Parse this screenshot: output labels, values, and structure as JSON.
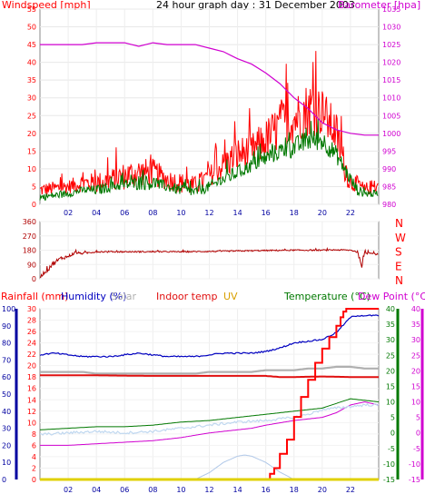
{
  "colors": {
    "wind": "#ff0000",
    "gust_dark": "#c00000",
    "windavg": "#007800",
    "baro": "#d000d0",
    "rain": "#ff0000",
    "humidity": "#0000c0",
    "indoor_hum": "#b0b0b0",
    "solar": "#b0c8e8",
    "indoor_temp": "#e01010",
    "uv": "#e0d000",
    "temperature": "#007800",
    "dewpoint": "#d000d0",
    "outdoor_temp": "#c0d8f0",
    "winddir": "#b00000",
    "axis_dark": "#0000a0"
  },
  "chart_data": [
    {
      "type": "line",
      "panel": "wind",
      "title": "24 hour graph day : 31 December 2003",
      "ylabel_left": "Windspeed [mph]",
      "ylabel_right": "Barometer [hpa]",
      "ylim_left": [
        0,
        55
      ],
      "ylim_right": [
        980,
        1035
      ],
      "yticks_left": [
        "0",
        "5",
        "10",
        "15",
        "20",
        "25",
        "30",
        "35",
        "40",
        "45",
        "50",
        "55"
      ],
      "yticks_right": [
        "980",
        "985",
        "990",
        "995",
        "1000",
        "1005",
        "1010",
        "1015",
        "1020",
        "1025",
        "1030",
        "1035"
      ],
      "x_ticks": [
        "02",
        "04",
        "06",
        "08",
        "10",
        "12",
        "14",
        "16",
        "18",
        "20",
        "22"
      ],
      "x_range_hours": [
        0,
        24
      ],
      "series": [
        {
          "name": "Windspeed",
          "color_key": "wind",
          "x": [
            0,
            1,
            2,
            3,
            4,
            5,
            6,
            7,
            8,
            9,
            10,
            11,
            12,
            13,
            14,
            15,
            16,
            17,
            18,
            19,
            19.5,
            20,
            21,
            21.5,
            22,
            22.5,
            23,
            23.5,
            24
          ],
          "values": [
            4,
            4.5,
            5,
            6,
            6,
            7,
            8,
            9,
            9,
            7,
            6,
            5,
            8,
            11,
            14,
            15,
            18,
            22,
            24,
            27,
            27,
            26,
            20,
            12,
            6,
            6,
            4,
            5,
            5
          ],
          "noise": [
            2,
            2,
            2,
            2.5,
            3,
            3,
            4,
            4,
            4,
            3,
            3,
            3,
            3,
            4,
            5,
            5,
            6,
            7,
            7,
            8,
            8,
            7,
            6,
            5,
            3,
            2,
            2,
            2,
            2
          ]
        },
        {
          "name": "Wind average",
          "color_key": "windavg",
          "x": [
            0,
            1,
            2,
            3,
            4,
            5,
            6,
            7,
            8,
            9,
            10,
            11,
            12,
            13,
            14,
            15,
            16,
            17,
            18,
            19,
            20,
            21,
            22,
            22.5,
            23,
            24
          ],
          "values": [
            2,
            2.5,
            3,
            4,
            4,
            5,
            5.5,
            6,
            6,
            5,
            4,
            3.5,
            5,
            7,
            9,
            11,
            13,
            15,
            16,
            18,
            18,
            14,
            7,
            4,
            3,
            3
          ],
          "noise": [
            1,
            1,
            1,
            1,
            1.5,
            1.5,
            1.5,
            2,
            2,
            1.5,
            1.5,
            1.5,
            1.5,
            2,
            2,
            2,
            2.5,
            2.5,
            3,
            3,
            3,
            2.5,
            2,
            1.5,
            1,
            1
          ]
        },
        {
          "name": "Barometer",
          "color_key": "baro",
          "axis": "right",
          "x": [
            0,
            1,
            2,
            3,
            4,
            5,
            6,
            6.5,
            7,
            7.5,
            8,
            9,
            10,
            11,
            12,
            13,
            14,
            15,
            16,
            17,
            18,
            19,
            20,
            21,
            22,
            23,
            24
          ],
          "values": [
            1025,
            1025,
            1025,
            1025,
            1025.5,
            1025.5,
            1025.5,
            1025,
            1024.5,
            1025,
            1025.5,
            1025,
            1025,
            1025,
            1024,
            1023,
            1021,
            1019.5,
            1017,
            1014,
            1010,
            1007,
            1003,
            1001,
            1000,
            999.5,
            999.5
          ]
        }
      ]
    },
    {
      "type": "line",
      "panel": "wind_direction",
      "yticks_left": [
        "0",
        "90",
        "180",
        "270",
        "360"
      ],
      "ylim_left": [
        0,
        360
      ],
      "yticks_right": [
        "N",
        "E",
        "S",
        "W",
        "N"
      ],
      "series": [
        {
          "name": "Wind direction",
          "color_key": "winddir",
          "x": [
            0,
            0.5,
            1,
            1.5,
            2,
            2.5,
            3,
            4,
            6,
            8,
            10,
            12,
            14,
            16,
            18,
            20,
            21,
            22,
            22.5,
            22.8,
            23,
            23.5,
            24
          ],
          "values": [
            10,
            60,
            100,
            130,
            140,
            165,
            160,
            170,
            170,
            170,
            170,
            172,
            175,
            178,
            180,
            180,
            182,
            180,
            170,
            80,
            160,
            165,
            150
          ],
          "noise": [
            5,
            20,
            15,
            12,
            10,
            8,
            6,
            5,
            4,
            4,
            4,
            4,
            4,
            4,
            4,
            4,
            4,
            4,
            8,
            10,
            8,
            6,
            6
          ]
        }
      ]
    },
    {
      "type": "line",
      "panel": "climate",
      "labels": {
        "rain": "Rainfall (mm)",
        "humidity": "Humidity (%)",
        "solar": "Solar",
        "indoor": "Indoor temp",
        "uv": "UV",
        "temperature": "Temperature (°C)",
        "dewpoint": "Dew Point (°C)"
      },
      "axes": {
        "humidity": {
          "ticks": [
            "0",
            "10",
            "20",
            "30",
            "40",
            "50",
            "60",
            "70",
            "80",
            "90",
            "100"
          ],
          "range": [
            0,
            100
          ]
        },
        "rain": {
          "ticks": [
            "0",
            "2",
            "4",
            "6",
            "8",
            "10",
            "12",
            "14",
            "16",
            "18",
            "20",
            "22",
            "24",
            "26",
            "28",
            "30"
          ],
          "range": [
            0,
            30
          ]
        },
        "temperature": {
          "ticks": [
            "-15",
            "-10",
            "-5",
            "0",
            "5",
            "10",
            "15",
            "20",
            "25",
            "30",
            "35",
            "40"
          ],
          "range": [
            -15,
            40
          ]
        },
        "dewpoint": {
          "ticks": [
            "-15",
            "-10",
            "-5",
            "0",
            "5",
            "10",
            "15",
            "20",
            "25",
            "30",
            "35",
            "40"
          ],
          "range": [
            -15,
            40
          ]
        }
      },
      "series": [
        {
          "name": "Humidity",
          "color_key": "humidity",
          "axis": "humidity",
          "x": [
            0,
            1,
            2,
            3,
            4,
            5,
            6,
            7,
            8,
            9,
            10,
            11,
            12,
            13,
            14,
            15,
            16,
            17,
            18,
            19,
            20,
            21,
            22,
            22.5,
            23,
            24
          ],
          "values": [
            73,
            74,
            73,
            72,
            72,
            72,
            73,
            74,
            73,
            72,
            72,
            72,
            73,
            74,
            74,
            74,
            75,
            77,
            80,
            81,
            82,
            86,
            95,
            96,
            96,
            96
          ]
        },
        {
          "name": "Indoor humidity",
          "color_key": "indoor_hum",
          "axis": "humidity",
          "x": [
            0,
            1,
            2,
            3,
            4,
            5,
            6,
            7,
            8,
            9,
            10,
            11,
            12,
            13,
            14,
            15,
            16,
            17,
            18,
            19,
            20,
            21,
            22,
            23,
            24
          ],
          "values": [
            63,
            63,
            63,
            63,
            62,
            62,
            62,
            62,
            62,
            62,
            62,
            62,
            63,
            63,
            63,
            63,
            64,
            64,
            64,
            65,
            65,
            66,
            66,
            65,
            65
          ]
        },
        {
          "name": "Indoor temp",
          "color_key": "indoor_temp",
          "axis": "rain",
          "x": [
            0,
            4,
            8,
            12,
            16,
            17,
            18,
            20,
            22,
            24
          ],
          "values": [
            18.3,
            18.3,
            18.2,
            18.2,
            18.2,
            18.0,
            18.0,
            18.1,
            18.0,
            18.0
          ]
        },
        {
          "name": "Temperature",
          "color_key": "temperature",
          "axis": "temperature",
          "x": [
            0,
            2,
            4,
            6,
            8,
            10,
            12,
            14,
            16,
            18,
            20,
            22,
            23,
            24
          ],
          "values": [
            1,
            1.5,
            2,
            2,
            2.5,
            3.5,
            4,
            5,
            6,
            7,
            8,
            11,
            10.5,
            10
          ]
        },
        {
          "name": "Dew Point",
          "color_key": "dewpoint",
          "axis": "temperature",
          "x": [
            0,
            2,
            4,
            6,
            8,
            10,
            12,
            14,
            15,
            16,
            18,
            20,
            21,
            22,
            23,
            24
          ],
          "values": [
            -4,
            -4,
            -3.5,
            -3,
            -2.5,
            -1.5,
            0,
            1,
            1.5,
            2.5,
            4,
            5,
            6.5,
            9,
            10,
            9
          ]
        },
        {
          "name": "Outdoor temp",
          "color_key": "outdoor_temp",
          "axis": "temperature",
          "x": [
            0,
            2,
            4,
            6,
            8,
            10,
            12,
            14,
            16,
            17,
            18,
            19,
            20,
            21,
            22,
            23,
            24
          ],
          "values": [
            -0.5,
            0,
            0.5,
            0,
            0.5,
            1.5,
            2.5,
            3.5,
            4,
            4.5,
            5,
            6,
            7.5,
            8,
            8.5,
            9,
            9
          ]
        },
        {
          "name": "Solar",
          "color_key": "solar",
          "axis": "rain",
          "x": [
            11,
            12,
            13,
            14,
            14.5,
            15,
            16,
            17,
            18
          ],
          "values": [
            0,
            1.2,
            3.0,
            4.1,
            4.3,
            4.1,
            3.0,
            1.3,
            0
          ]
        },
        {
          "name": "Rainfall",
          "color_key": "rain",
          "axis": "rain",
          "step": true,
          "x": [
            0,
            16,
            16.3,
            16.6,
            17,
            17.5,
            18,
            18.5,
            19,
            19.5,
            20,
            20.5,
            21,
            21.3,
            21.5,
            21.7,
            22,
            24
          ],
          "values": [
            0,
            0,
            1.0,
            2.0,
            4.5,
            7.0,
            11,
            14.5,
            17.5,
            20.5,
            23.0,
            25.0,
            27.0,
            28.5,
            29.5,
            30.0,
            30.0,
            30.0
          ]
        },
        {
          "name": "UV",
          "color_key": "uv",
          "axis": "rain",
          "x": [
            0,
            24
          ],
          "values": [
            0,
            0
          ]
        }
      ]
    }
  ]
}
